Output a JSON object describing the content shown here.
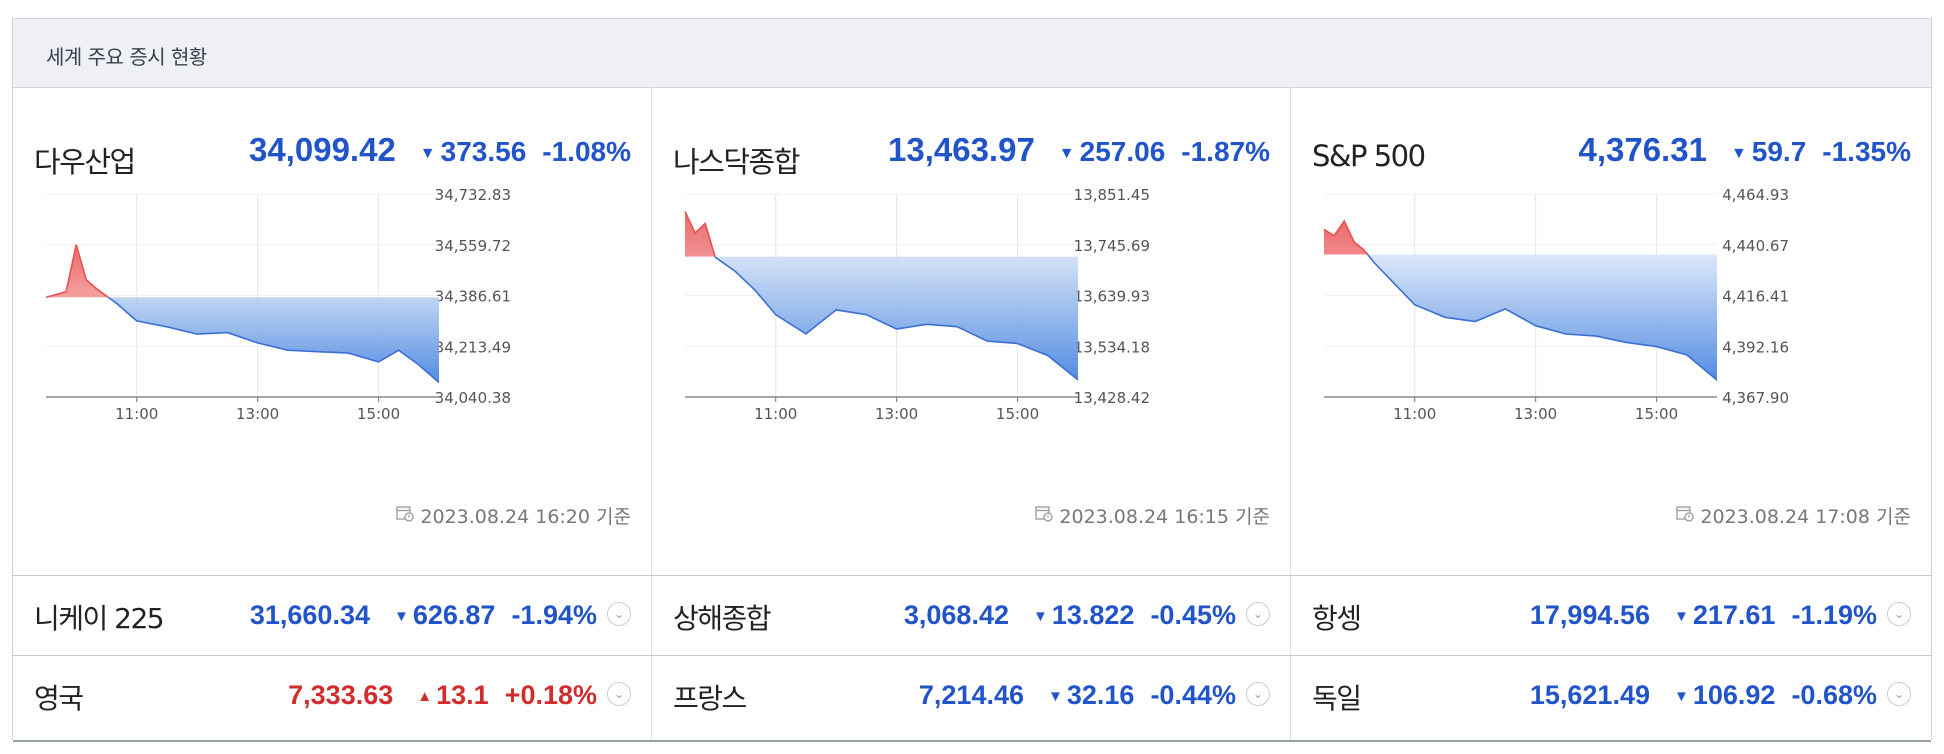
{
  "header": {
    "title": "세계 주요 증시 현황"
  },
  "panels": [
    {
      "name": "다우산업",
      "value": "34,099.42",
      "change": "373.56",
      "percent": "-1.08%",
      "direction": "down",
      "timestamp": "2023.08.24 16:20 기준",
      "chart_data": {
        "type": "area",
        "title": "다우산업",
        "x_ticks": [
          "11:00",
          "13:00",
          "15:00"
        ],
        "y_ticks": [
          "34,732.83",
          "34,559.72",
          "34,386.61",
          "34,213.49",
          "34,040.38"
        ],
        "ylim": [
          34040.38,
          34732.83
        ],
        "baseline": 34380,
        "x": [
          "09:30",
          "09:50",
          "10:00",
          "10:10",
          "10:20",
          "10:40",
          "11:00",
          "11:30",
          "12:00",
          "12:30",
          "13:00",
          "13:30",
          "14:00",
          "14:30",
          "15:00",
          "15:20",
          "15:40",
          "16:00"
        ],
        "y": [
          34380,
          34400,
          34560,
          34440,
          34410,
          34360,
          34300,
          34280,
          34255,
          34260,
          34225,
          34200,
          34195,
          34190,
          34160,
          34200,
          34150,
          34090
        ]
      }
    },
    {
      "name": "나스닥종합",
      "value": "13,463.97",
      "change": "257.06",
      "percent": "-1.87%",
      "direction": "down",
      "timestamp": "2023.08.24 16:15 기준",
      "chart_data": {
        "type": "area",
        "title": "나스닥종합",
        "x_ticks": [
          "11:00",
          "13:00",
          "15:00"
        ],
        "y_ticks": [
          "13,851.45",
          "13,745.69",
          "13,639.93",
          "13,534.18",
          "13,428.42"
        ],
        "ylim": [
          13428.42,
          13851.45
        ],
        "baseline": 13721,
        "x": [
          "09:30",
          "09:40",
          "09:50",
          "10:00",
          "10:20",
          "10:40",
          "11:00",
          "11:30",
          "12:00",
          "12:30",
          "13:00",
          "13:30",
          "14:00",
          "14:30",
          "15:00",
          "15:30",
          "16:00"
        ],
        "y": [
          13815,
          13770,
          13790,
          13720,
          13690,
          13650,
          13600,
          13560,
          13610,
          13600,
          13570,
          13580,
          13575,
          13545,
          13540,
          13515,
          13464
        ]
      }
    },
    {
      "name": "S&P 500",
      "value": "4,376.31",
      "change": "59.7",
      "percent": "-1.35%",
      "direction": "down",
      "timestamp": "2023.08.24 17:08 기준",
      "chart_data": {
        "type": "area",
        "title": "S&P 500",
        "x_ticks": [
          "11:00",
          "13:00",
          "15:00"
        ],
        "y_ticks": [
          "4,464.93",
          "4,440.67",
          "4,416.41",
          "4,392.16",
          "4,367.90"
        ],
        "ylim": [
          4367.9,
          4464.93
        ],
        "baseline": 4436,
        "x": [
          "09:30",
          "09:40",
          "09:50",
          "10:00",
          "10:10",
          "10:20",
          "10:40",
          "11:00",
          "11:30",
          "12:00",
          "12:30",
          "13:00",
          "13:30",
          "14:00",
          "14:30",
          "15:00",
          "15:30",
          "16:00"
        ],
        "y": [
          4448,
          4445,
          4452,
          4442,
          4438,
          4432,
          4422,
          4412,
          4406,
          4404,
          4410,
          4402,
          4398,
          4397,
          4394,
          4392,
          4388,
          4376
        ]
      }
    }
  ],
  "rows": [
    [
      {
        "name": "니케이 225",
        "value": "31,660.34",
        "change": "626.87",
        "percent": "-1.94%",
        "direction": "down"
      },
      {
        "name": "상해종합",
        "value": "3,068.42",
        "change": "13.822",
        "percent": "-0.45%",
        "direction": "down"
      },
      {
        "name": "항셍",
        "value": "17,994.56",
        "change": "217.61",
        "percent": "-1.19%",
        "direction": "down"
      }
    ],
    [
      {
        "name": "영국",
        "value": "7,333.63",
        "change": "13.1",
        "percent": "+0.18%",
        "direction": "up"
      },
      {
        "name": "프랑스",
        "value": "7,214.46",
        "change": "32.16",
        "percent": "-0.44%",
        "direction": "down"
      },
      {
        "name": "독일",
        "value": "15,621.49",
        "change": "106.92",
        "percent": "-0.68%",
        "direction": "down"
      }
    ]
  ],
  "icons": {
    "down": "▼",
    "up": "▲",
    "expand": "⌄",
    "calendar": "calendar-clock-icon"
  },
  "colors": {
    "down": "#2154c9",
    "up": "#d12d2d",
    "area_down": "#4a86e0",
    "area_up": "#e85050"
  }
}
